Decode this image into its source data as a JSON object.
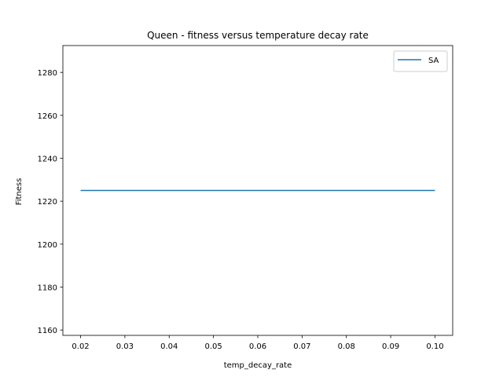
{
  "chart_data": {
    "type": "line",
    "title": "Queen - fitness versus temperature decay rate",
    "xlabel": "temp_decay_rate",
    "ylabel": "Fitness",
    "x": [
      0.02,
      0.03,
      0.04,
      0.05,
      0.06,
      0.07,
      0.08,
      0.09,
      0.1
    ],
    "series": [
      {
        "name": "SA",
        "color": "#1f77b4",
        "values": [
          1225,
          1225,
          1225,
          1225,
          1225,
          1225,
          1225,
          1225,
          1225
        ]
      }
    ],
    "xlim": [
      0.016,
      0.104
    ],
    "ylim": [
      1157.5,
      1292.5
    ],
    "xticks": [
      0.02,
      0.03,
      0.04,
      0.05,
      0.06,
      0.07,
      0.08,
      0.09,
      0.1
    ],
    "xtick_labels": [
      "0.02",
      "0.03",
      "0.04",
      "0.05",
      "0.06",
      "0.07",
      "0.08",
      "0.09",
      "0.10"
    ],
    "yticks": [
      1160,
      1180,
      1200,
      1220,
      1240,
      1260,
      1280
    ],
    "ytick_labels": [
      "1160",
      "1180",
      "1200",
      "1220",
      "1240",
      "1260",
      "1280"
    ],
    "grid": false,
    "legend": "top-right"
  }
}
